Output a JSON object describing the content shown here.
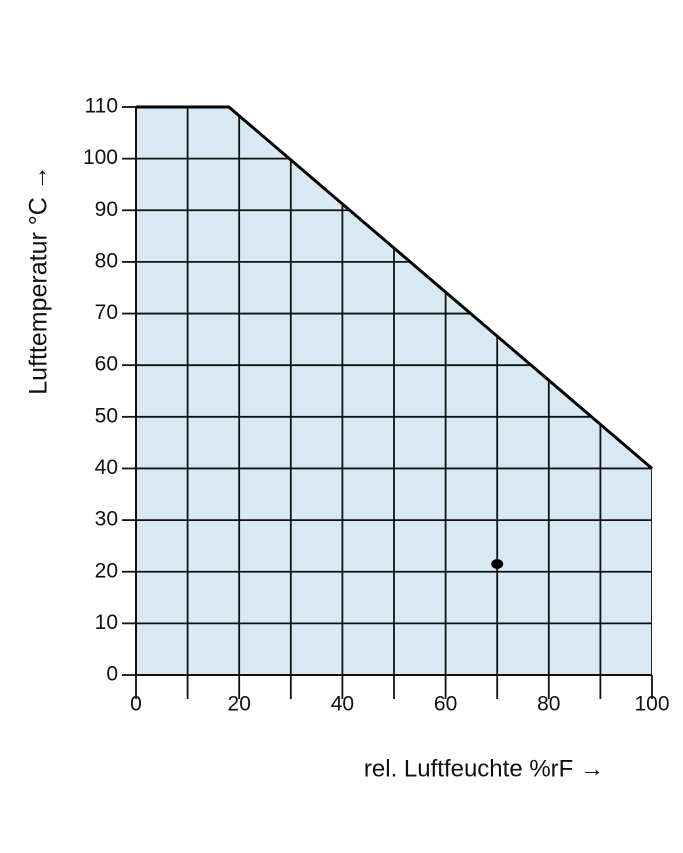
{
  "chart_data": {
    "type": "area",
    "xlabel": "rel. Luftfeuchte %rF →",
    "ylabel": "Lufttemperatur °C →",
    "x": [
      0,
      18,
      100
    ],
    "values": [
      110,
      110,
      40
    ],
    "color": "#d9e9f4",
    "line_color": "#000000",
    "points": {
      "x": [
        70
      ],
      "values": [
        21.5
      ],
      "color": "#000000"
    },
    "xlim": [
      0,
      100
    ],
    "xticks": [
      0,
      20,
      40,
      60,
      80,
      100
    ],
    "xminor_ticks": [
      10,
      30,
      50,
      70,
      90
    ],
    "ylim": [
      0,
      110
    ],
    "yticks": [
      0,
      10,
      20,
      30,
      40,
      50,
      60,
      70,
      80,
      90,
      100,
      110
    ],
    "grid": true
  }
}
